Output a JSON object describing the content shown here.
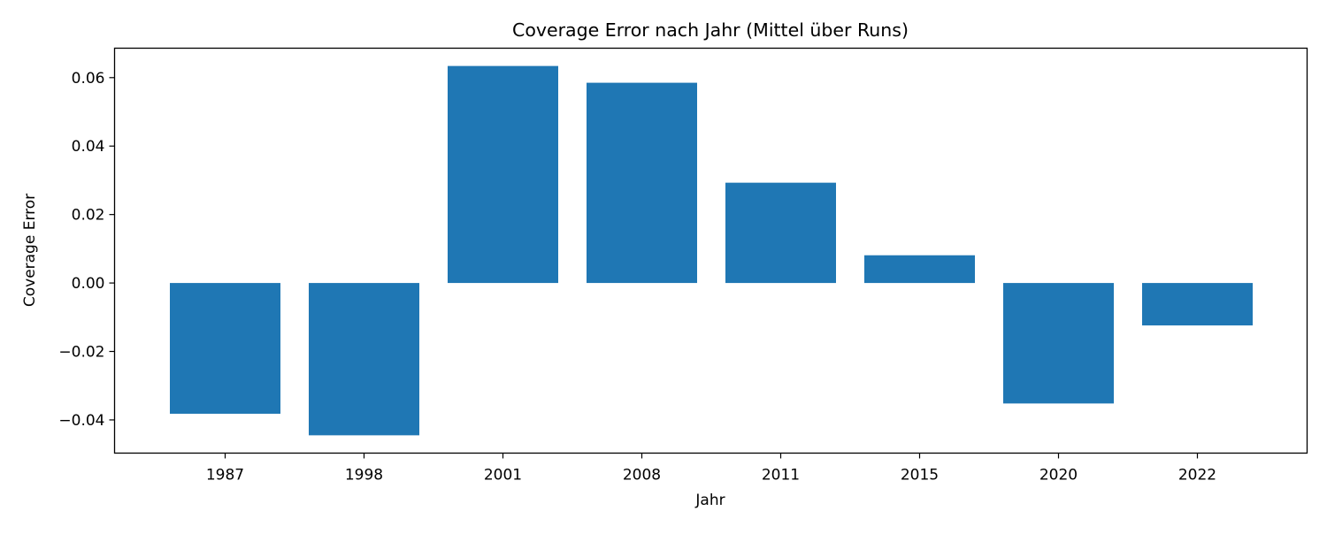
{
  "chart_data": {
    "type": "bar",
    "title": "Coverage Error nach Jahr (Mittel über Runs)",
    "xlabel": "Jahr",
    "ylabel": "Coverage Error",
    "categories": [
      "1987",
      "1998",
      "2001",
      "2008",
      "2011",
      "2015",
      "2020",
      "2022"
    ],
    "values": [
      -0.0382,
      -0.0445,
      0.0634,
      0.0585,
      0.0293,
      0.0081,
      -0.0352,
      -0.0124
    ],
    "ylim": [
      -0.0497,
      0.0686
    ],
    "yticks": [
      -0.04,
      -0.02,
      0.0,
      0.02,
      0.04,
      0.06
    ],
    "ytick_labels": [
      "−0.04",
      "−0.02",
      "0.00",
      "0.02",
      "0.04",
      "0.06"
    ],
    "grid": false,
    "legend": null,
    "bar_color": "#1f77b4"
  }
}
